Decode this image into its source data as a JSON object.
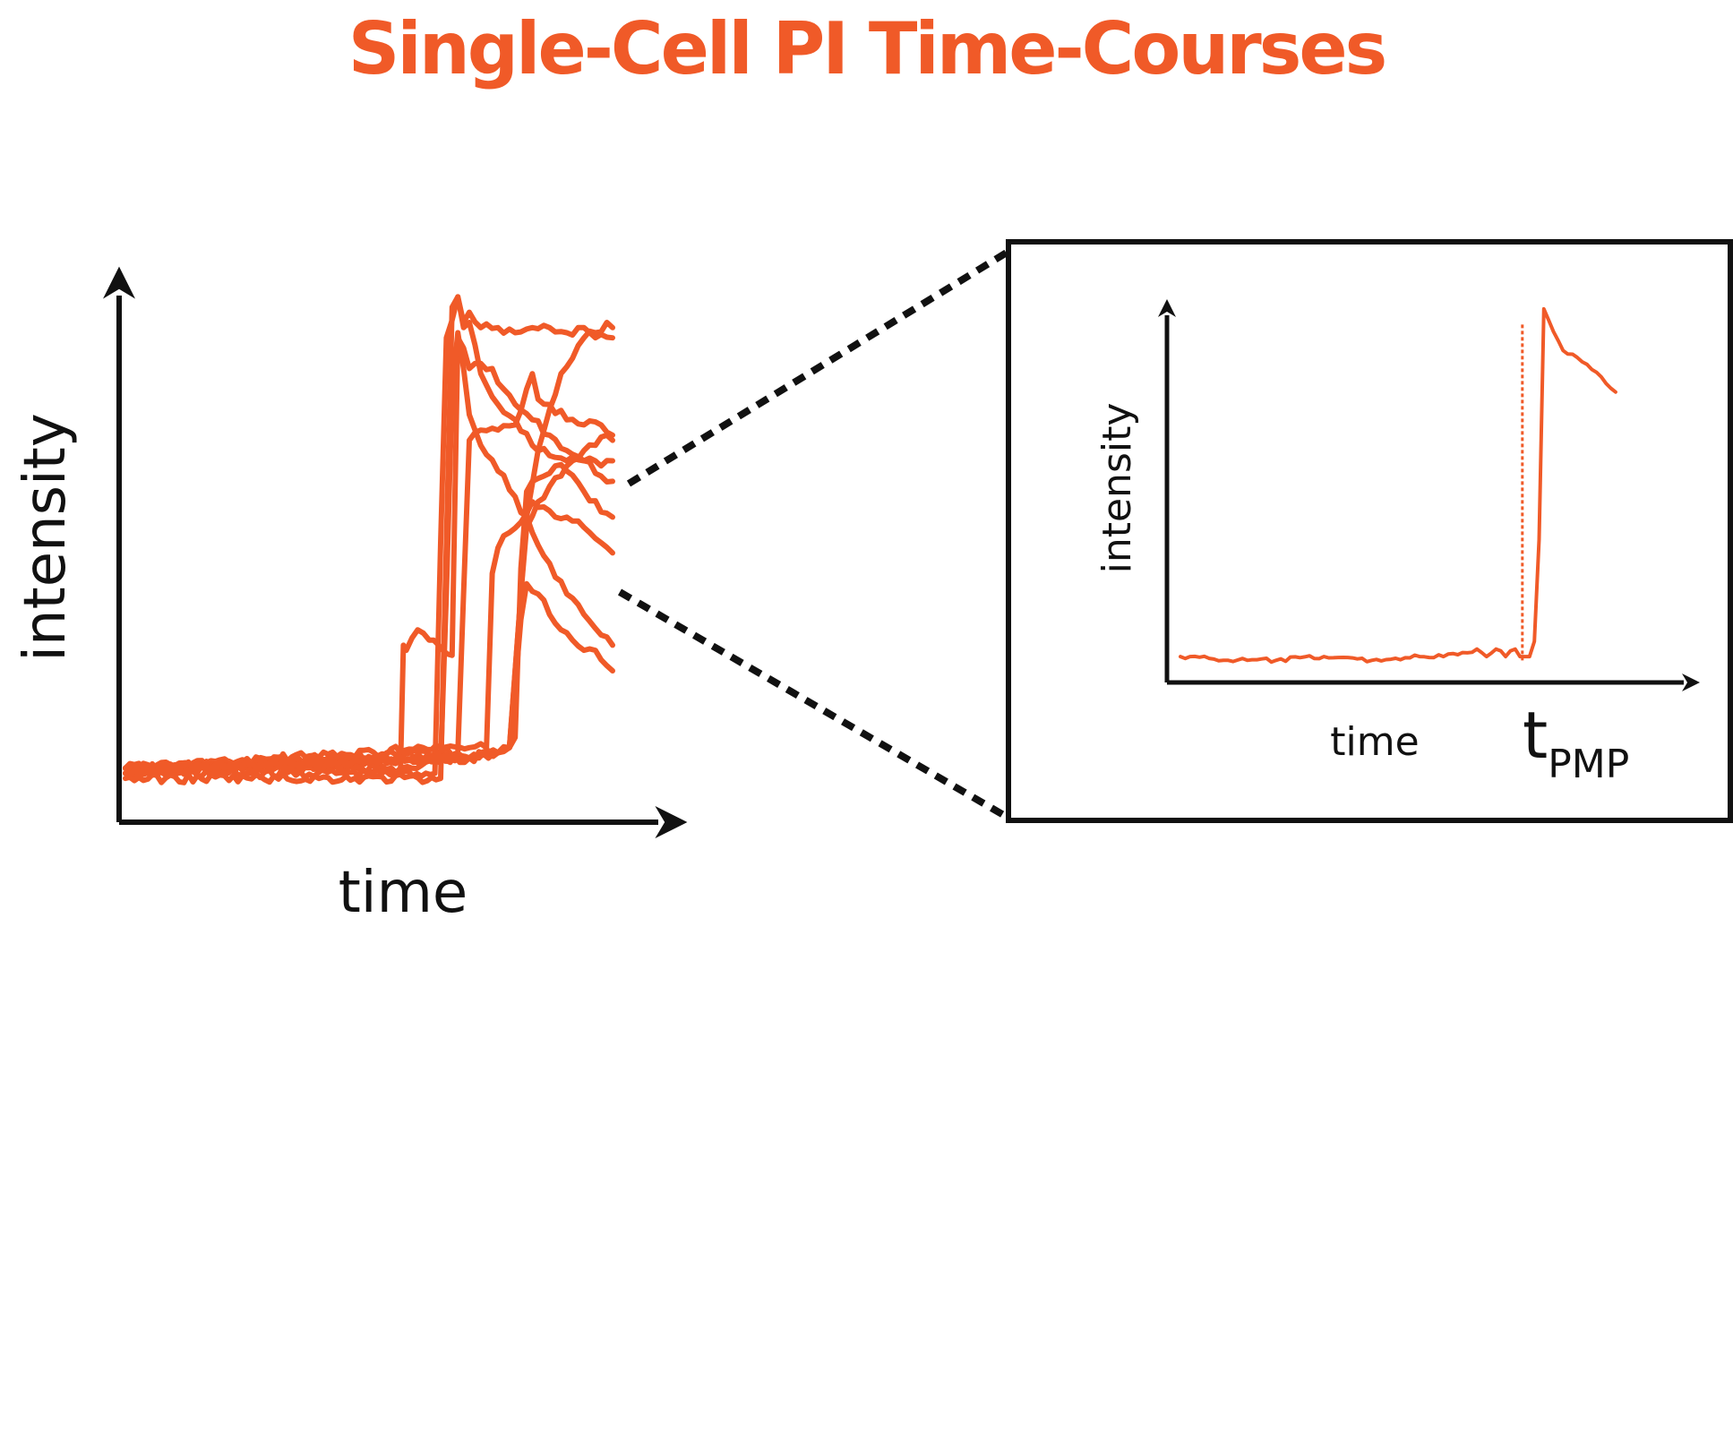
{
  "title": "Single-Cell PI Time-Courses",
  "colors": {
    "accent": "#F05A28",
    "axis": "#111111",
    "background": "#FFFFFF"
  },
  "chart_data": [
    {
      "type": "line",
      "xlabel": "time",
      "ylabel": "intensity",
      "tick_labels": false,
      "grid": false,
      "legend": "none",
      "xlim": [
        0,
        100
      ],
      "ylim": [
        0,
        100
      ],
      "series": [
        {
          "x": [
            0,
            48,
            48.5,
            49,
            51,
            53,
            57,
            58,
            59,
            60,
            62,
            64,
            66,
            68,
            71,
            74,
            77,
            80,
            83,
            85
          ],
          "values": [
            6,
            6,
            30,
            29,
            33,
            31,
            28,
            90,
            88,
            84,
            85,
            84,
            80,
            77,
            74,
            71,
            68,
            66,
            63,
            62
          ]
        },
        {
          "x": [
            0,
            54,
            55,
            56,
            58,
            59,
            60,
            62,
            65,
            68,
            71,
            74,
            77,
            80,
            82,
            85
          ],
          "values": [
            5,
            5,
            50,
            90,
            98,
            93,
            95,
            92,
            92,
            91,
            92,
            92,
            91,
            92,
            90,
            90
          ]
        },
        {
          "x": [
            0,
            55,
            56,
            57,
            58,
            59,
            60,
            62,
            65,
            68,
            71,
            74,
            77,
            80,
            83,
            85
          ],
          "values": [
            4,
            4,
            50,
            96,
            98,
            92,
            93,
            83,
            77,
            74,
            69,
            67,
            66,
            66,
            65,
            66
          ]
        },
        {
          "x": [
            0,
            50,
            55,
            56,
            57,
            58,
            59,
            60,
            62,
            65,
            68,
            71,
            74,
            77,
            80,
            83,
            85
          ],
          "values": [
            6,
            6,
            7,
            40,
            80,
            91,
            84,
            75,
            69,
            64,
            59,
            52,
            46,
            40,
            36,
            32,
            30
          ]
        },
        {
          "x": [
            0,
            55,
            58,
            59,
            60,
            62,
            65,
            68,
            70,
            71,
            72,
            74,
            77,
            80,
            83,
            85
          ],
          "values": [
            6,
            9,
            9,
            40,
            70,
            72,
            72,
            73,
            80,
            83,
            78,
            77,
            74,
            73,
            73,
            71
          ]
        },
        {
          "x": [
            0,
            55,
            60,
            63,
            64,
            65,
            67,
            69,
            71,
            73,
            75,
            77,
            80,
            83,
            85
          ],
          "values": [
            6,
            10,
            10,
            10,
            44,
            49,
            52,
            54,
            58,
            57,
            55,
            55,
            53,
            50,
            48
          ]
        },
        {
          "x": [
            0,
            55,
            60,
            65,
            67,
            68,
            69,
            70,
            71,
            73,
            75,
            77,
            80,
            83,
            85
          ],
          "values": [
            6,
            8,
            8,
            9,
            10,
            12,
            45,
            60,
            62,
            63,
            65,
            64,
            60,
            56,
            55
          ]
        },
        {
          "x": [
            0,
            55,
            60,
            65,
            67,
            68,
            69,
            70,
            72,
            74,
            76,
            78,
            80,
            82,
            84,
            85
          ],
          "values": [
            5,
            8,
            8,
            9,
            10,
            25,
            40,
            55,
            68,
            76,
            83,
            86,
            90,
            91,
            93,
            92
          ]
        },
        {
          "x": [
            0,
            55,
            60,
            65,
            67,
            68,
            69,
            70,
            72,
            74,
            76,
            78,
            80,
            82,
            84,
            85
          ],
          "values": [
            5,
            8,
            8,
            9,
            10,
            25,
            40,
            53,
            58,
            61,
            63,
            66,
            68,
            69,
            71,
            70
          ]
        },
        {
          "x": [
            0,
            55,
            60,
            65,
            67,
            68,
            69,
            70,
            72,
            74,
            76,
            78,
            80,
            82,
            84,
            85
          ],
          "values": [
            6,
            8,
            8,
            9,
            10,
            22,
            35,
            42,
            40,
            36,
            33,
            31,
            29,
            29,
            26,
            25
          ]
        }
      ]
    },
    {
      "type": "line",
      "xlabel": "time",
      "ylabel": "intensity",
      "annotation": {
        "main": "t",
        "subscript": "PMP",
        "x": 71.5
      },
      "tick_labels": false,
      "grid": false,
      "legend": "none",
      "xlim": [
        0,
        100
      ],
      "ylim": [
        0,
        100
      ],
      "series": [
        {
          "x": [
            0,
            2,
            10,
            20,
            30,
            40,
            50,
            55,
            60,
            62,
            64,
            66,
            68,
            70,
            71,
            72,
            73,
            74,
            75,
            76,
            78,
            80,
            82,
            84,
            86,
            88,
            90,
            91
          ],
          "values": [
            4,
            4,
            3,
            3,
            4,
            3,
            4,
            4,
            5,
            6,
            4,
            6,
            4,
            6,
            4,
            4,
            4,
            8,
            35,
            96,
            90,
            85,
            84,
            82,
            80,
            78,
            75,
            74
          ]
        }
      ]
    }
  ]
}
